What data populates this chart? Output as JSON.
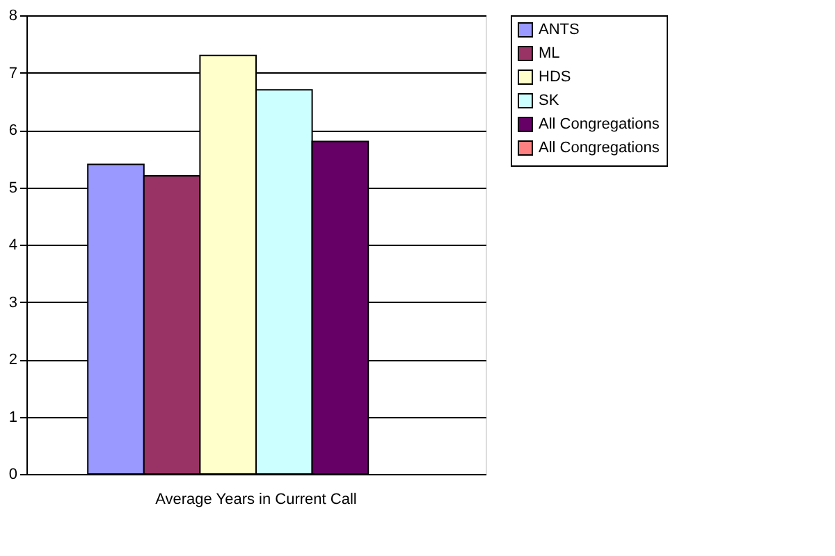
{
  "chart_data": {
    "type": "bar",
    "categories": [
      "Average Years in Current Call"
    ],
    "series": [
      {
        "name": "ANTS",
        "color": "#9999ff",
        "values": [
          5.4
        ]
      },
      {
        "name": "ML",
        "color": "#993366",
        "values": [
          5.2
        ]
      },
      {
        "name": "HDS",
        "color": "#ffffcc",
        "values": [
          7.3
        ]
      },
      {
        "name": "SK",
        "color": "#ccffff",
        "values": [
          6.7
        ]
      },
      {
        "name": "All Congregations",
        "color": "#660066",
        "values": [
          5.8
        ]
      },
      {
        "name": "All Congregations",
        "color": "#ff8080",
        "values": [
          null
        ]
      }
    ],
    "ylim": [
      0,
      8
    ],
    "yticks": [
      0,
      1,
      2,
      3,
      4,
      5,
      6,
      7,
      8
    ],
    "grid": "y",
    "legend": "right"
  }
}
